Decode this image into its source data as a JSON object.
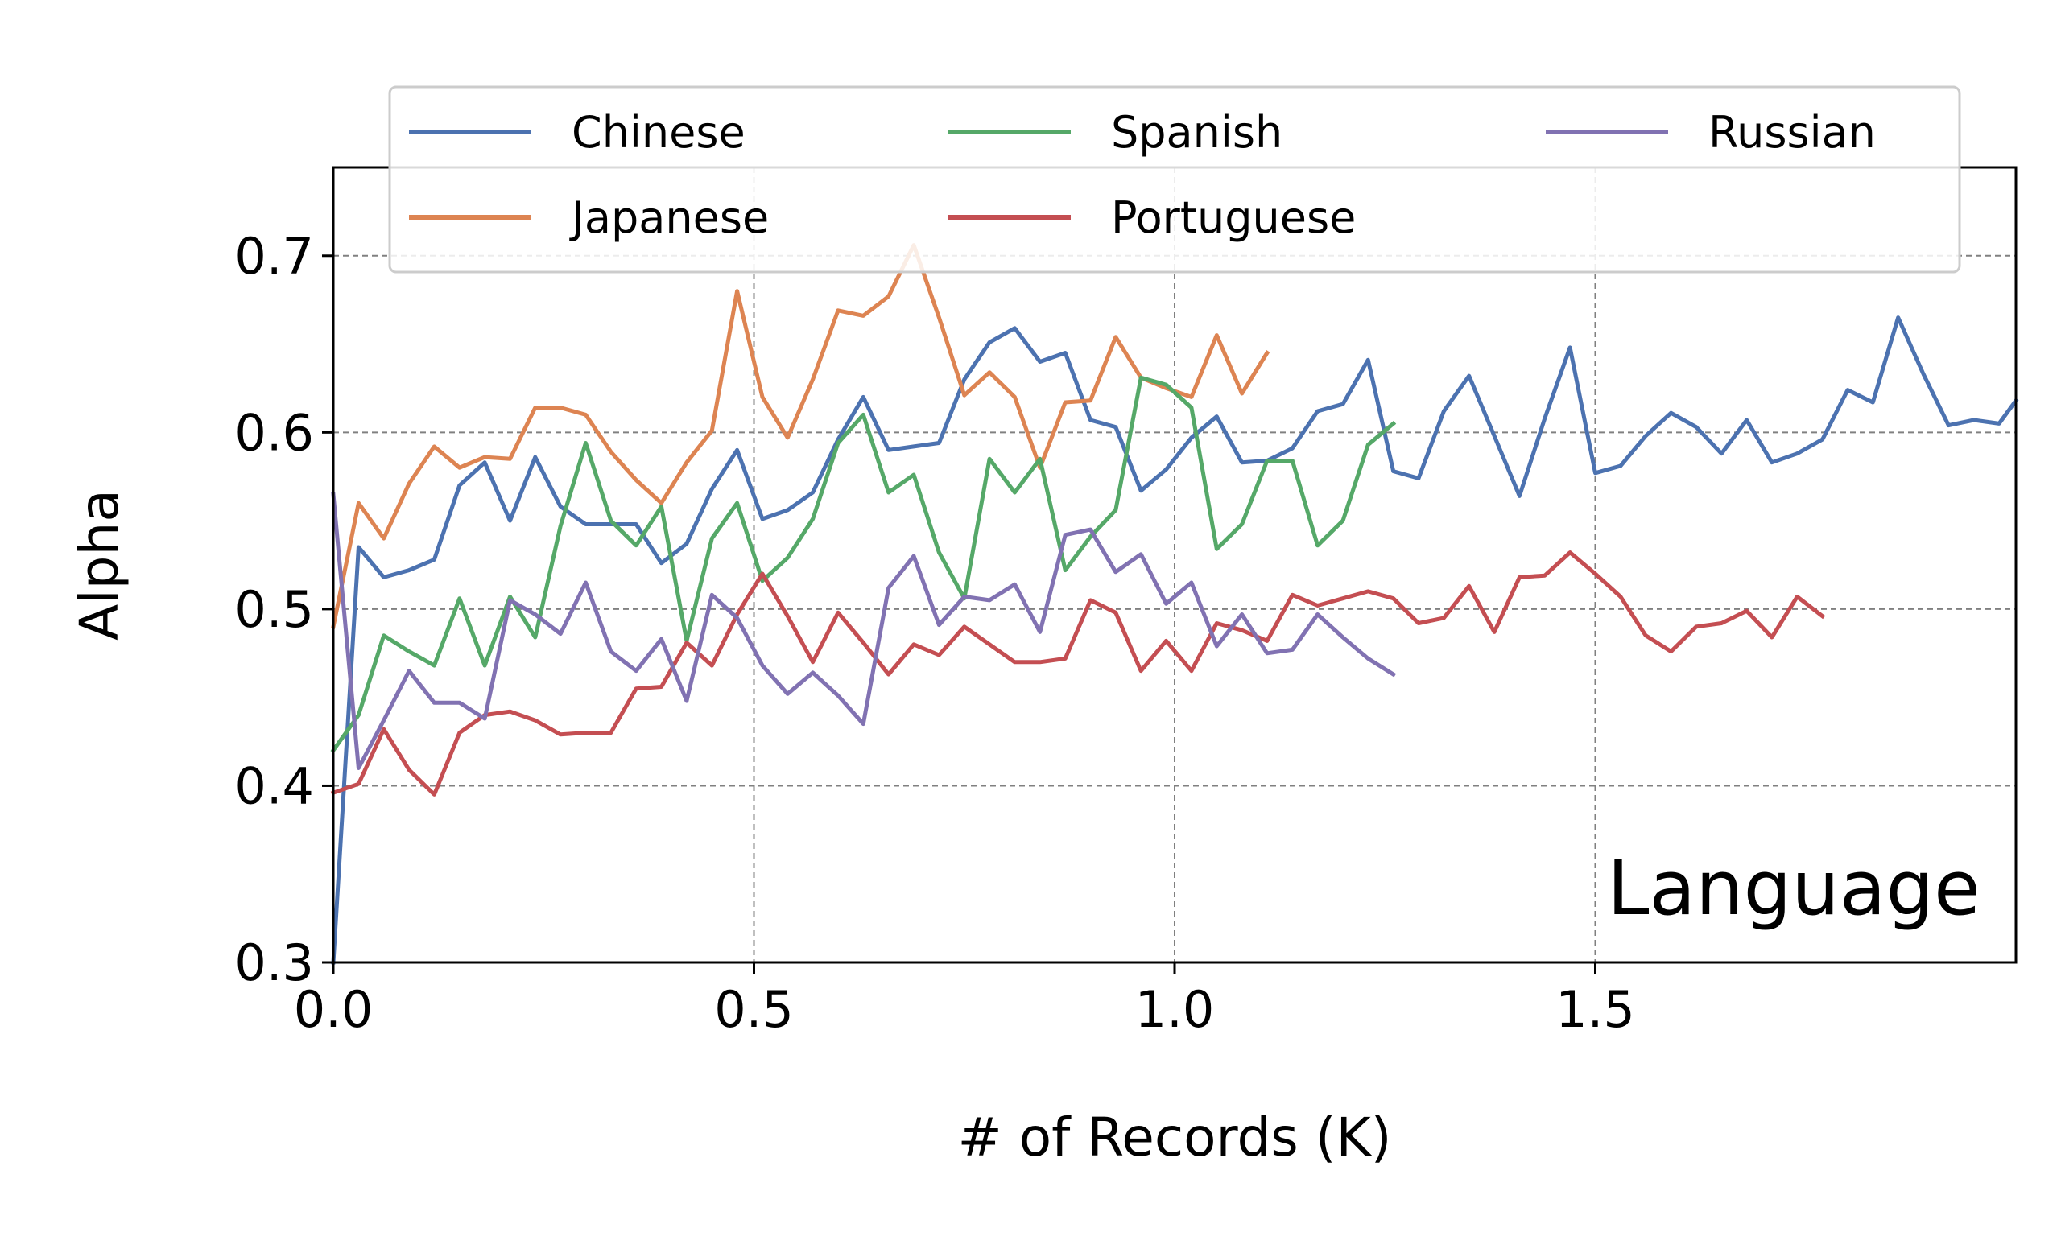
{
  "chart_data": {
    "type": "line",
    "xlabel": "# of Records (K)",
    "ylabel": "Alpha",
    "annotation": "Language",
    "xlim": [
      0,
      2.0
    ],
    "ylim": [
      0.3,
      0.75
    ],
    "xticks": [
      0.0,
      0.5,
      1.0,
      1.5
    ],
    "xtick_labels": [
      "0.0",
      "0.5",
      "1.0",
      "1.5"
    ],
    "yticks": [
      0.3,
      0.4,
      0.5,
      0.6,
      0.7
    ],
    "ytick_labels": [
      "0.3",
      "0.4",
      "0.5",
      "0.6",
      "0.7"
    ],
    "grid": true,
    "legend_position": "top",
    "legend_columns": 3,
    "x_step": 0.03,
    "series": [
      {
        "name": "Chinese",
        "color": "#4c72b0",
        "values": [
          0.3,
          0.535,
          0.518,
          0.522,
          0.528,
          0.57,
          0.583,
          0.55,
          0.586,
          0.558,
          0.548,
          0.548,
          0.548,
          0.526,
          0.537,
          0.568,
          0.59,
          0.551,
          0.556,
          0.566,
          0.596,
          0.62,
          0.59,
          0.592,
          0.594,
          0.63,
          0.651,
          0.659,
          0.64,
          0.645,
          0.607,
          0.603,
          0.567,
          0.579,
          0.597,
          0.609,
          0.583,
          0.584,
          0.591,
          0.612,
          0.616,
          0.641,
          0.578,
          0.574,
          0.612,
          0.632,
          0.598,
          0.564,
          0.608,
          0.648,
          0.577,
          0.581,
          0.598,
          0.611,
          0.603,
          0.588,
          0.607,
          0.583,
          0.588,
          0.596,
          0.624,
          0.617,
          0.665,
          0.633,
          0.604,
          0.607,
          0.605,
          0.618
        ]
      },
      {
        "name": "Japanese",
        "color": "#dd8452",
        "values": [
          0.49,
          0.56,
          0.54,
          0.571,
          0.592,
          0.58,
          0.586,
          0.585,
          0.614,
          0.614,
          0.61,
          0.589,
          0.573,
          0.56,
          0.583,
          0.601,
          0.68,
          0.62,
          0.597,
          0.63,
          0.669,
          0.666,
          0.677,
          0.706,
          0.665,
          0.621,
          0.634,
          0.62,
          0.58,
          0.617,
          0.618,
          0.654,
          0.631,
          0.625,
          0.62,
          0.655,
          0.622,
          0.645
        ]
      },
      {
        "name": "Spanish",
        "color": "#55a868",
        "values": [
          0.42,
          0.44,
          0.485,
          0.476,
          0.468,
          0.506,
          0.468,
          0.507,
          0.484,
          0.547,
          0.594,
          0.55,
          0.536,
          0.558,
          0.482,
          0.54,
          0.56,
          0.516,
          0.529,
          0.551,
          0.594,
          0.61,
          0.566,
          0.576,
          0.532,
          0.506,
          0.585,
          0.566,
          0.585,
          0.522,
          0.541,
          0.556,
          0.631,
          0.627,
          0.614,
          0.534,
          0.548,
          0.584,
          0.584,
          0.536,
          0.55,
          0.593,
          0.605
        ]
      },
      {
        "name": "Portuguese",
        "color": "#c44e52",
        "values": [
          0.396,
          0.401,
          0.432,
          0.409,
          0.395,
          0.43,
          0.44,
          0.442,
          0.437,
          0.429,
          0.43,
          0.43,
          0.455,
          0.456,
          0.481,
          0.468,
          0.497,
          0.52,
          0.496,
          0.47,
          0.498,
          0.481,
          0.463,
          0.48,
          0.474,
          0.49,
          0.48,
          0.47,
          0.47,
          0.472,
          0.505,
          0.498,
          0.465,
          0.482,
          0.465,
          0.492,
          0.488,
          0.482,
          0.508,
          0.502,
          0.506,
          0.51,
          0.506,
          0.492,
          0.495,
          0.513,
          0.487,
          0.518,
          0.519,
          0.532,
          0.52,
          0.507,
          0.485,
          0.476,
          0.49,
          0.492,
          0.499,
          0.484,
          0.507,
          0.496
        ]
      },
      {
        "name": "Russian",
        "color": "#8172b2",
        "values": [
          0.565,
          0.41,
          0.437,
          0.465,
          0.447,
          0.447,
          0.438,
          0.505,
          0.497,
          0.486,
          0.515,
          0.476,
          0.465,
          0.483,
          0.448,
          0.508,
          0.495,
          0.468,
          0.452,
          0.464,
          0.451,
          0.435,
          0.512,
          0.53,
          0.491,
          0.507,
          0.505,
          0.514,
          0.487,
          0.542,
          0.545,
          0.521,
          0.531,
          0.503,
          0.515,
          0.479,
          0.497,
          0.475,
          0.477,
          0.497,
          0.484,
          0.472,
          0.463
        ]
      }
    ]
  }
}
